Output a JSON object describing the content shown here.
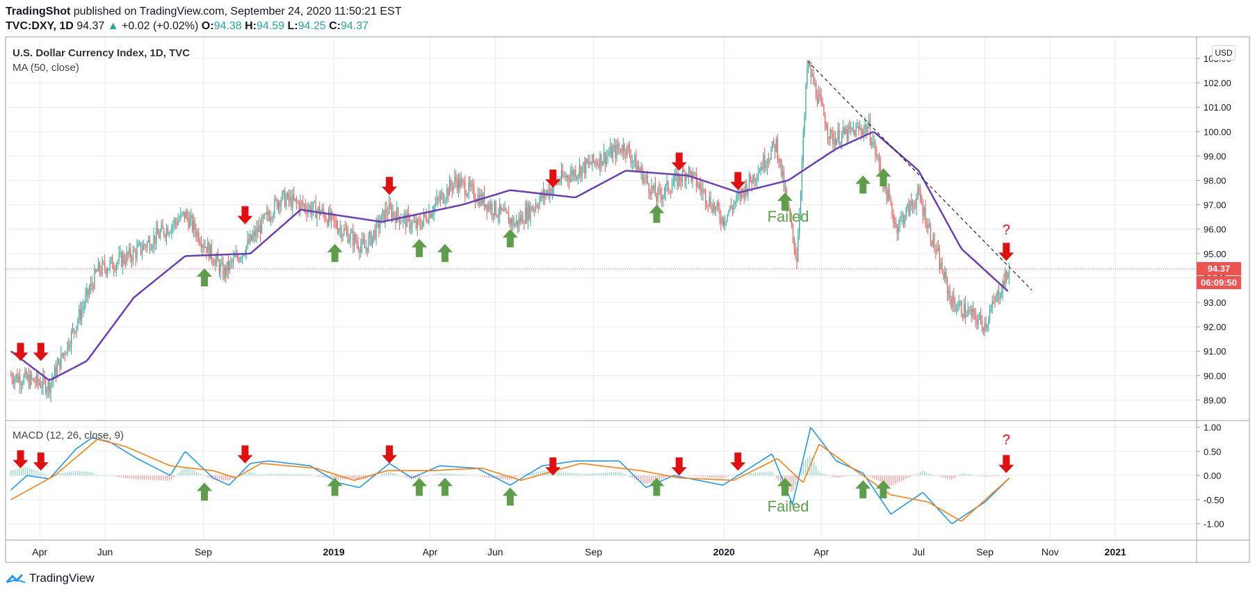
{
  "header": {
    "author": "TradingShot",
    "published": "published on TradingView.com, September 24, 2020 11:50:21 EST",
    "symbol": "TVC:DXY, 1D",
    "last": "94.37",
    "change": "+0.02 (+0.02%)",
    "o_label": "O:",
    "o": "94.38",
    "h_label": "H:",
    "h": "94.59",
    "l_label": "L:",
    "l": "94.25",
    "c_label": "C:",
    "c": "94.37"
  },
  "main_pane": {
    "title": "U.S. Dollar Currency Index, 1D, TVC",
    "indicator": "MA (50, close)",
    "currency": "USD",
    "price_tag": "94.37",
    "countdown_tag": "06:09:50"
  },
  "macd_pane": {
    "title": "MACD (12, 26, close, 9)"
  },
  "footer": {
    "brand": "TradingView"
  },
  "colors": {
    "up": "#26a69a",
    "down": "#ef5350",
    "ma": "#6a3fb5",
    "macd": "#2196f3",
    "signal": "#ff7f0e",
    "arrow_up": "#5e9e4a",
    "arrow_down": "#e01010"
  },
  "chart_data": [
    {
      "type": "candlestick",
      "title": "U.S. Dollar Currency Index, 1D, TVC",
      "x_ticks": [
        "Apr",
        "Jun",
        "Sep",
        "2019",
        "Apr",
        "Jun",
        "Sep",
        "2020",
        "Apr",
        "Jul",
        "Sep",
        "Nov",
        "2021"
      ],
      "x_tick_dates": [
        "2018-04",
        "2018-06",
        "2018-09",
        "2019-01",
        "2019-04",
        "2019-06",
        "2019-09",
        "2020-01",
        "2020-04",
        "2020-07",
        "2020-09",
        "2020-11",
        "2021-01"
      ],
      "y_ticks": [
        "89.00",
        "90.00",
        "91.00",
        "92.00",
        "93.00",
        "94.00",
        "95.00",
        "96.00",
        "97.00",
        "98.00",
        "99.00",
        "100.00",
        "101.00",
        "102.00",
        "103.00"
      ],
      "ylim": [
        88.5,
        103.2
      ],
      "last_price": 94.37,
      "close_path": [
        [
          "2018-03-05",
          90.0
        ],
        [
          "2018-04-10",
          89.6
        ],
        [
          "2018-05-01",
          91.7
        ],
        [
          "2018-05-25",
          94.3
        ],
        [
          "2018-06-28",
          95.0
        ],
        [
          "2018-08-15",
          96.6
        ],
        [
          "2018-09-20",
          94.2
        ],
        [
          "2018-10-15",
          95.5
        ],
        [
          "2018-11-12",
          97.3
        ],
        [
          "2018-12-20",
          96.7
        ],
        [
          "2019-01-30",
          95.2
        ],
        [
          "2019-02-20",
          96.8
        ],
        [
          "2019-03-20",
          96.1
        ],
        [
          "2019-04-25",
          98.0
        ],
        [
          "2019-06-20",
          96.2
        ],
        [
          "2019-07-30",
          98.0
        ],
        [
          "2019-09-30",
          99.4
        ],
        [
          "2019-10-30",
          97.3
        ],
        [
          "2019-11-28",
          98.4
        ],
        [
          "2019-12-31",
          96.4
        ],
        [
          "2020-02-19",
          99.5
        ],
        [
          "2020-03-09",
          94.8
        ],
        [
          "2020-03-19",
          102.8
        ],
        [
          "2020-04-10",
          99.7
        ],
        [
          "2020-05-15",
          100.2
        ],
        [
          "2020-06-10",
          96.1
        ],
        [
          "2020-07-01",
          97.4
        ],
        [
          "2020-08-01",
          93.0
        ],
        [
          "2020-09-01",
          92.1
        ],
        [
          "2020-09-24",
          94.37
        ]
      ],
      "ma50_path": [
        [
          "2018-03-05",
          91.0
        ],
        [
          "2018-04-10",
          89.8
        ],
        [
          "2018-05-15",
          90.6
        ],
        [
          "2018-06-28",
          93.2
        ],
        [
          "2018-08-15",
          94.9
        ],
        [
          "2018-10-15",
          95.0
        ],
        [
          "2018-12-01",
          96.8
        ],
        [
          "2019-02-15",
          96.3
        ],
        [
          "2019-05-01",
          97.0
        ],
        [
          "2019-06-15",
          97.6
        ],
        [
          "2019-08-15",
          97.3
        ],
        [
          "2019-10-01",
          98.4
        ],
        [
          "2019-11-28",
          98.2
        ],
        [
          "2020-01-15",
          97.5
        ],
        [
          "2020-03-01",
          98.0
        ],
        [
          "2020-04-15",
          99.3
        ],
        [
          "2020-05-20",
          100.0
        ],
        [
          "2020-07-01",
          98.4
        ],
        [
          "2020-08-10",
          95.2
        ],
        [
          "2020-09-24",
          93.4
        ]
      ],
      "trendline": [
        [
          "2020-03-19",
          102.9
        ],
        [
          "2020-10-15",
          93.5
        ]
      ],
      "annotations": [
        {
          "kind": "arrow-down",
          "date": "2018-03-14",
          "value": 91.0
        },
        {
          "kind": "arrow-down",
          "date": "2018-04-02",
          "value": 91.0
        },
        {
          "kind": "arrow-up",
          "date": "2018-09-02",
          "value": 94.0
        },
        {
          "kind": "arrow-down",
          "date": "2018-10-10",
          "value": 96.6
        },
        {
          "kind": "arrow-up",
          "date": "2019-01-02",
          "value": 95.0
        },
        {
          "kind": "arrow-down",
          "date": "2019-02-22",
          "value": 97.8
        },
        {
          "kind": "arrow-up",
          "date": "2019-03-22",
          "value": 95.2
        },
        {
          "kind": "arrow-up",
          "date": "2019-04-15",
          "value": 95.0
        },
        {
          "kind": "arrow-up",
          "date": "2019-06-15",
          "value": 95.6
        },
        {
          "kind": "arrow-down",
          "date": "2019-07-25",
          "value": 98.1
        },
        {
          "kind": "arrow-up",
          "date": "2019-10-30",
          "value": 96.6
        },
        {
          "kind": "arrow-down",
          "date": "2019-11-20",
          "value": 98.8
        },
        {
          "kind": "arrow-down",
          "date": "2020-01-14",
          "value": 98.0
        },
        {
          "kind": "arrow-up",
          "date": "2020-02-27",
          "value": 97.1
        },
        {
          "kind": "arrow-up",
          "date": "2020-05-10",
          "value": 97.8
        },
        {
          "kind": "arrow-up",
          "date": "2020-05-29",
          "value": 98.1
        },
        {
          "kind": "arrow-down",
          "date": "2020-09-21",
          "value": 95.1
        },
        {
          "kind": "text",
          "text": "Failed",
          "date": "2020-03-01",
          "value": 96.3
        },
        {
          "kind": "text",
          "text": "?",
          "date": "2020-09-21",
          "value": 95.8
        }
      ]
    },
    {
      "type": "line",
      "title": "MACD (12, 26, close, 9)",
      "y_ticks": [
        "1.00",
        "0.50",
        "0.00",
        "-0.50",
        "-1.00"
      ],
      "ylim": [
        -1.25,
        1.05
      ],
      "series": [
        {
          "color": "#2196f3",
          "values": [
            [
              "2018-03-05",
              -0.3
            ],
            [
              "2018-03-20",
              0.0
            ],
            [
              "2018-04-10",
              -0.07
            ],
            [
              "2018-05-05",
              0.55
            ],
            [
              "2018-05-20",
              0.78
            ],
            [
              "2018-06-05",
              0.7
            ],
            [
              "2018-07-01",
              0.35
            ],
            [
              "2018-08-01",
              0.0
            ],
            [
              "2018-08-15",
              0.5
            ],
            [
              "2018-09-10",
              -0.05
            ],
            [
              "2018-09-25",
              -0.2
            ],
            [
              "2018-10-15",
              0.25
            ],
            [
              "2018-11-01",
              0.3
            ],
            [
              "2018-12-10",
              0.2
            ],
            [
              "2019-01-05",
              -0.15
            ],
            [
              "2019-01-25",
              -0.25
            ],
            [
              "2019-02-22",
              0.25
            ],
            [
              "2019-03-15",
              -0.05
            ],
            [
              "2019-04-10",
              0.2
            ],
            [
              "2019-05-15",
              0.15
            ],
            [
              "2019-06-15",
              -0.2
            ],
            [
              "2019-07-15",
              0.2
            ],
            [
              "2019-08-15",
              0.3
            ],
            [
              "2019-09-25",
              0.3
            ],
            [
              "2019-10-20",
              -0.25
            ],
            [
              "2019-11-15",
              0.0
            ],
            [
              "2019-12-31",
              -0.2
            ],
            [
              "2020-02-15",
              0.45
            ],
            [
              "2020-03-05",
              -0.6
            ],
            [
              "2020-03-22",
              1.0
            ],
            [
              "2020-04-15",
              0.3
            ],
            [
              "2020-05-10",
              0.05
            ],
            [
              "2020-06-05",
              -0.8
            ],
            [
              "2020-07-05",
              -0.35
            ],
            [
              "2020-08-01",
              -1.0
            ],
            [
              "2020-09-01",
              -0.55
            ],
            [
              "2020-09-24",
              -0.05
            ]
          ]
        },
        {
          "color": "#ff7f0e",
          "values": [
            [
              "2018-03-05",
              -0.5
            ],
            [
              "2018-04-15",
              0.0
            ],
            [
              "2018-05-25",
              0.75
            ],
            [
              "2018-06-20",
              0.6
            ],
            [
              "2018-08-01",
              0.2
            ],
            [
              "2018-09-10",
              0.1
            ],
            [
              "2018-10-01",
              -0.05
            ],
            [
              "2018-10-25",
              0.25
            ],
            [
              "2018-12-15",
              0.15
            ],
            [
              "2019-01-20",
              -0.1
            ],
            [
              "2019-02-20",
              0.1
            ],
            [
              "2019-04-01",
              0.1
            ],
            [
              "2019-05-20",
              0.15
            ],
            [
              "2019-06-25",
              -0.1
            ],
            [
              "2019-08-20",
              0.25
            ],
            [
              "2019-10-15",
              0.1
            ],
            [
              "2019-11-20",
              -0.05
            ],
            [
              "2020-01-10",
              -0.1
            ],
            [
              "2020-02-20",
              0.35
            ],
            [
              "2020-03-15",
              -0.15
            ],
            [
              "2020-03-30",
              0.65
            ],
            [
              "2020-04-30",
              0.15
            ],
            [
              "2020-06-05",
              -0.4
            ],
            [
              "2020-07-10",
              -0.55
            ],
            [
              "2020-08-10",
              -0.95
            ],
            [
              "2020-09-24",
              -0.05
            ]
          ]
        }
      ],
      "annotations": [
        {
          "kind": "arrow-down",
          "date": "2018-03-14",
          "value": 0.35
        },
        {
          "kind": "arrow-down",
          "date": "2018-04-02",
          "value": 0.3
        },
        {
          "kind": "arrow-up",
          "date": "2018-09-02",
          "value": -0.35
        },
        {
          "kind": "arrow-down",
          "date": "2018-10-10",
          "value": 0.45
        },
        {
          "kind": "arrow-up",
          "date": "2019-01-02",
          "value": -0.25
        },
        {
          "kind": "arrow-down",
          "date": "2019-02-22",
          "value": 0.45
        },
        {
          "kind": "arrow-up",
          "date": "2019-03-22",
          "value": -0.25
        },
        {
          "kind": "arrow-up",
          "date": "2019-04-15",
          "value": -0.25
        },
        {
          "kind": "arrow-up",
          "date": "2019-06-15",
          "value": -0.45
        },
        {
          "kind": "arrow-down",
          "date": "2019-07-25",
          "value": 0.2
        },
        {
          "kind": "arrow-up",
          "date": "2019-10-30",
          "value": -0.25
        },
        {
          "kind": "arrow-down",
          "date": "2019-11-20",
          "value": 0.2
        },
        {
          "kind": "arrow-down",
          "date": "2020-01-14",
          "value": 0.3
        },
        {
          "kind": "arrow-up",
          "date": "2020-02-27",
          "value": -0.25
        },
        {
          "kind": "arrow-up",
          "date": "2020-05-10",
          "value": -0.3
        },
        {
          "kind": "arrow-up",
          "date": "2020-05-29",
          "value": -0.3
        },
        {
          "kind": "arrow-down",
          "date": "2020-09-21",
          "value": 0.25
        },
        {
          "kind": "text",
          "text": "Failed",
          "date": "2020-03-01",
          "value": -0.75
        },
        {
          "kind": "text",
          "text": "?",
          "date": "2020-09-21",
          "value": 0.65
        }
      ]
    }
  ]
}
